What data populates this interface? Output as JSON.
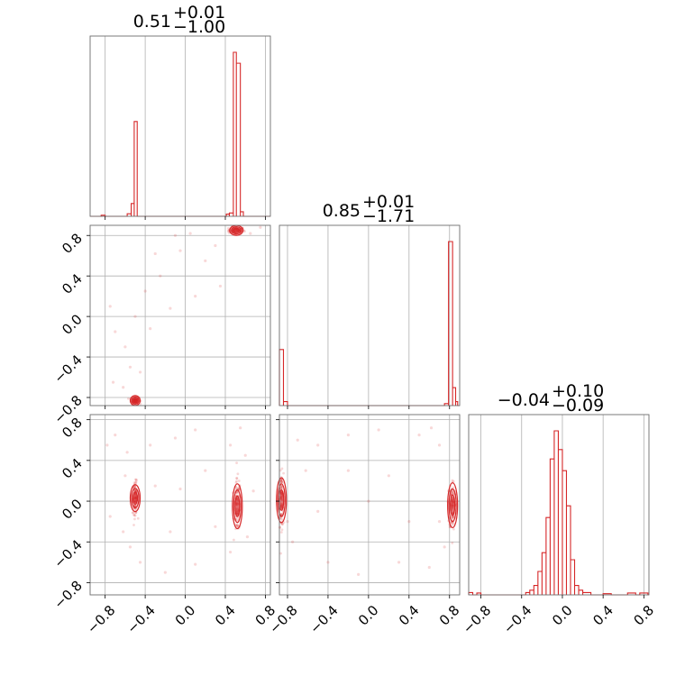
{
  "chart_data": {
    "type": "corner",
    "description_of_layout": "3x3 lower-triangular corner plot; diagonal = 1D histograms, off-diagonal = 2D scatter with density contours",
    "colors": {
      "series": "#d62728",
      "grid": "#b0b0b0",
      "frame": "#6d6d6d"
    },
    "ticks": {
      "values": [
        -0.8,
        -0.4,
        0.0,
        0.4,
        0.8
      ],
      "labels": [
        "−0.8",
        "−0.4",
        "0.0",
        "0.4",
        "0.8"
      ]
    },
    "params": [
      {
        "index": 0,
        "range": [
          -0.95,
          0.85
        ],
        "title": {
          "main": "0.51",
          "sup": "+0.01",
          "sub": "−1.00"
        }
      },
      {
        "index": 1,
        "range": [
          -0.88,
          0.9
        ],
        "title": {
          "main": "0.85",
          "sup": "+0.01",
          "sub": "−1.71"
        }
      },
      {
        "index": 2,
        "range": [
          -0.92,
          0.85
        ],
        "title": {
          "main": "−0.04",
          "sup": "+0.10",
          "sub": "−0.09"
        }
      }
    ],
    "histograms": [
      {
        "param": 0,
        "bins": [
          [
            -0.84,
            -0.8,
            0.006
          ],
          [
            -0.58,
            -0.54,
            0.014
          ],
          [
            -0.54,
            -0.51,
            0.07
          ],
          [
            -0.51,
            -0.48,
            0.52
          ],
          [
            -0.48,
            -0.45,
            0
          ],
          [
            0.41,
            0.44,
            0.012
          ],
          [
            0.44,
            0.48,
            0.018
          ],
          [
            0.48,
            0.51,
            0.9
          ],
          [
            0.51,
            0.55,
            0.84
          ],
          [
            0.55,
            0.58,
            0.025
          ]
        ]
      },
      {
        "param": 1,
        "bins": [
          [
            -0.88,
            -0.84,
            0.28
          ],
          [
            -0.84,
            -0.8,
            0.02
          ],
          [
            0.75,
            0.79,
            0.01
          ],
          [
            0.79,
            0.83,
            0.82
          ],
          [
            0.83,
            0.86,
            0.09
          ],
          [
            0.86,
            0.88,
            0.02
          ]
        ]
      },
      {
        "param": 2,
        "bins": [
          [
            -0.92,
            -0.88,
            0.01
          ],
          [
            -0.84,
            -0.8,
            0.008
          ],
          [
            -0.36,
            -0.32,
            0.01
          ],
          [
            -0.32,
            -0.28,
            0.02
          ],
          [
            -0.28,
            -0.24,
            0.04
          ],
          [
            -0.24,
            -0.2,
            0.1
          ],
          [
            -0.2,
            -0.16,
            0.18
          ],
          [
            -0.16,
            -0.12,
            0.33
          ],
          [
            -0.12,
            -0.08,
            0.58
          ],
          [
            -0.08,
            -0.04,
            0.7
          ],
          [
            -0.04,
            0.0,
            0.62
          ],
          [
            0.0,
            0.04,
            0.53
          ],
          [
            0.04,
            0.08,
            0.38
          ],
          [
            0.08,
            0.12,
            0.15
          ],
          [
            0.12,
            0.16,
            0.04
          ],
          [
            0.16,
            0.2,
            0.02
          ],
          [
            0.2,
            0.28,
            0.01
          ],
          [
            0.4,
            0.48,
            0.005
          ],
          [
            0.64,
            0.72,
            0.008
          ],
          [
            0.76,
            0.84,
            0.008
          ]
        ]
      }
    ],
    "scatter": [
      {
        "xparam": 0,
        "yparam": 1,
        "clusters": [
          {
            "cx": 0.51,
            "cy": 0.85,
            "sx": 0.03,
            "sy": 0.012
          },
          {
            "cx": -0.5,
            "cy": -0.83,
            "sx": 0.015,
            "sy": 0.012
          }
        ],
        "points": [
          [
            -0.1,
            0.8
          ],
          [
            -0.3,
            0.62
          ],
          [
            -0.25,
            0.4
          ],
          [
            -0.15,
            0.08
          ],
          [
            -0.75,
            0.1
          ],
          [
            -0.7,
            -0.15
          ],
          [
            -0.6,
            -0.3
          ],
          [
            -0.55,
            -0.5
          ],
          [
            -0.45,
            -0.55
          ],
          [
            -0.62,
            -0.7
          ],
          [
            -0.72,
            -0.65
          ],
          [
            0.1,
            0.2
          ],
          [
            0.2,
            0.55
          ],
          [
            0.3,
            0.7
          ],
          [
            0.35,
            0.3
          ],
          [
            -0.35,
            -0.12
          ],
          [
            -0.5,
            0.0
          ],
          [
            0.05,
            0.82
          ],
          [
            0.65,
            0.82
          ],
          [
            0.75,
            0.88
          ],
          [
            -0.05,
            0.65
          ],
          [
            -0.4,
            0.25
          ]
        ]
      },
      {
        "xparam": 0,
        "yparam": 2,
        "clusters": [
          {
            "cx": -0.5,
            "cy": 0.03,
            "sx": 0.01,
            "sy": 0.06
          },
          {
            "cx": 0.52,
            "cy": -0.05,
            "sx": 0.012,
            "sy": 0.1
          }
        ],
        "points": [
          [
            -0.7,
            0.65
          ],
          [
            -0.58,
            0.48
          ],
          [
            -0.35,
            0.55
          ],
          [
            -0.1,
            0.62
          ],
          [
            0.1,
            0.7
          ],
          [
            0.45,
            0.55
          ],
          [
            0.6,
            0.45
          ],
          [
            0.62,
            -0.35
          ],
          [
            0.45,
            -0.5
          ],
          [
            0.1,
            -0.62
          ],
          [
            -0.2,
            -0.7
          ],
          [
            -0.45,
            -0.6
          ],
          [
            -0.62,
            -0.3
          ],
          [
            -0.75,
            -0.15
          ],
          [
            -0.3,
            0.15
          ],
          [
            0.2,
            0.3
          ],
          [
            0.3,
            -0.25
          ],
          [
            -0.15,
            -0.3
          ],
          [
            0.55,
            0.72
          ],
          [
            -0.55,
            -0.45
          ],
          [
            -0.6,
            0.25
          ],
          [
            -0.05,
            0.12
          ],
          [
            0.68,
            0.1
          ],
          [
            -0.78,
            0.55
          ]
        ]
      },
      {
        "xparam": 1,
        "yparam": 2,
        "clusters": [
          {
            "cx": -0.86,
            "cy": 0.01,
            "sx": 0.008,
            "sy": 0.1
          },
          {
            "cx": 0.83,
            "cy": -0.04,
            "sx": 0.012,
            "sy": 0.1
          }
        ],
        "points": [
          [
            -0.7,
            0.6
          ],
          [
            -0.5,
            0.55
          ],
          [
            -0.2,
            0.65
          ],
          [
            0.1,
            0.7
          ],
          [
            0.5,
            0.65
          ],
          [
            0.7,
            0.55
          ],
          [
            0.75,
            -0.45
          ],
          [
            0.6,
            -0.65
          ],
          [
            0.3,
            -0.6
          ],
          [
            -0.1,
            -0.72
          ],
          [
            -0.4,
            -0.6
          ],
          [
            -0.75,
            -0.4
          ],
          [
            -0.8,
            -0.2
          ],
          [
            -0.2,
            0.3
          ],
          [
            0.2,
            0.25
          ],
          [
            0.4,
            -0.2
          ],
          [
            -0.5,
            -0.1
          ],
          [
            0.62,
            0.72
          ],
          [
            -0.62,
            0.3
          ],
          [
            0.0,
            0.0
          ],
          [
            0.7,
            -0.2
          ]
        ]
      }
    ]
  }
}
